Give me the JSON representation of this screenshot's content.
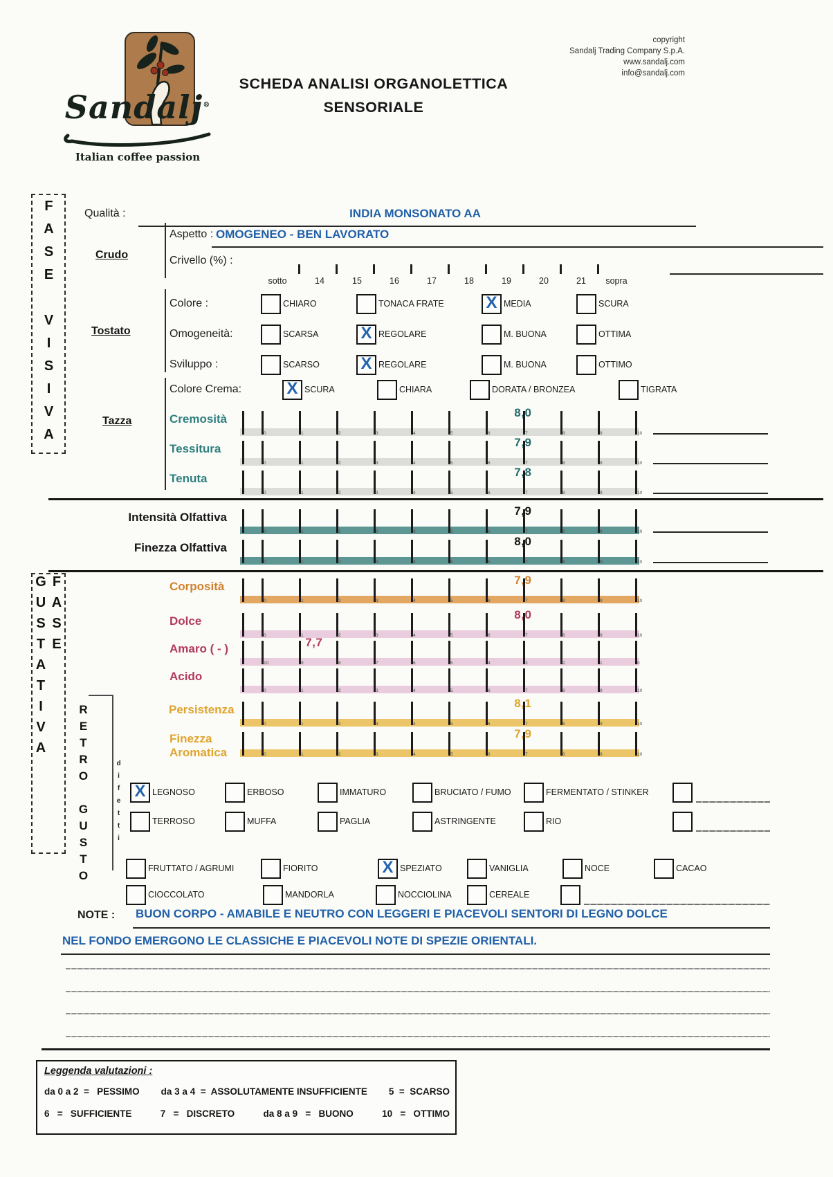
{
  "colors": {
    "ink_blue": "#2060a8",
    "check_blue": "#2263ad",
    "teal_bar": "#4f8d8a",
    "gray_bar": "#d9d9d5",
    "orange_bar": "#dfa055",
    "pink_bar": "#e7c8da",
    "gold_bar": "#ecc05c",
    "logo_brown": "#ae7c4c"
  },
  "brand": {
    "name": "Sandalj",
    "reg": "®",
    "tagline": "Italian coffee passion"
  },
  "title": {
    "line1": "SCHEDA ANALISI ORGANOLETTICA",
    "line2": "SENSORIALE"
  },
  "copyright": {
    "l1": "copyright",
    "l2": "Sandalj Trading Company S.p.A.",
    "l3": "www.sandalj.com",
    "l4": "info@sandalj.com"
  },
  "quality": {
    "label": "Qualità :",
    "value": "INDIA MONSONATO AA"
  },
  "phases": {
    "visiva": "FASE VISIVA",
    "gustativa": "FASE GUSTATIVA",
    "retro": "RETRO GUSTO",
    "difetti": "difetti"
  },
  "sections": {
    "crudo": "Crudo",
    "tostato": "Tostato",
    "tazza": "Tazza"
  },
  "crudo": {
    "aspetto_label": "Aspetto :",
    "aspetto_value": "OMOGENEO - BEN LAVORATO",
    "crivello_label": "Crivello (%) :",
    "crivello_ticks": [
      "sotto",
      "14",
      "15",
      "16",
      "17",
      "18",
      "19",
      "20",
      "21",
      "sopra"
    ]
  },
  "tostato_rows": [
    {
      "label": "Colore :",
      "options": [
        {
          "text": "CHIARO",
          "mark": ""
        },
        {
          "text": "TONACA FRATE",
          "mark": ""
        },
        {
          "text": "MEDIA",
          "mark": "X"
        },
        {
          "text": "SCURA",
          "mark": ""
        }
      ]
    },
    {
      "label": "Omogeneità:",
      "options": [
        {
          "text": "SCARSA",
          "mark": ""
        },
        {
          "text": "REGOLARE",
          "mark": "X"
        },
        {
          "text": "M. BUONA",
          "mark": ""
        },
        {
          "text": "OTTIMA",
          "mark": ""
        }
      ]
    },
    {
      "label": "Sviluppo :",
      "options": [
        {
          "text": "SCARSO",
          "mark": ""
        },
        {
          "text": "REGOLARE",
          "mark": "X"
        },
        {
          "text": "M. BUONA",
          "mark": ""
        },
        {
          "text": "OTTIMO",
          "mark": ""
        }
      ]
    }
  ],
  "colore_crema": {
    "label": "Colore Crema:",
    "options": [
      {
        "text": "SCURA",
        "mark": "X"
      },
      {
        "text": "CHIARA",
        "mark": ""
      },
      {
        "text": "DORATA / BRONZEA",
        "mark": ""
      },
      {
        "text": "TIGRATA",
        "mark": ""
      }
    ]
  },
  "scales": [
    {
      "label": "Cremosità",
      "value": "8,0",
      "label_color": "#2e7f7f",
      "value_color": "#236b6b",
      "bar_color": "#d9d9d5",
      "reverse": false
    },
    {
      "label": "Tessitura",
      "value": "7,9",
      "label_color": "#2e7f7f",
      "value_color": "#236b6b",
      "bar_color": "#d9d9d5",
      "reverse": false
    },
    {
      "label": "Tenuta",
      "value": "7,8",
      "label_color": "#2e7f7f",
      "value_color": "#236b6b",
      "bar_color": "#d9d9d5",
      "reverse": false
    },
    {
      "label": "Intensità Olfattiva",
      "value": "7,9",
      "label_color": "#161616",
      "value_color": "#161616",
      "bar_color": "#4f8d8a",
      "reverse": false
    },
    {
      "label": "Finezza Olfattiva",
      "value": "8,0",
      "label_color": "#161616",
      "value_color": "#161616",
      "bar_color": "#4f8d8a",
      "reverse": false
    },
    {
      "label": "Corposità",
      "value": "7,9",
      "label_color": "#d0822c",
      "value_color": "#d0822c",
      "bar_color": "#dfa055",
      "reverse": false
    },
    {
      "label": "Dolce",
      "value": "8,0",
      "label_color": "#b23a60",
      "value_color": "#b23a60",
      "bar_color": "#e7c8da",
      "reverse": false
    },
    {
      "label": "Amaro ( - )",
      "value": "7,7",
      "label_color": "#b23a60",
      "value_color": "#b23a60",
      "bar_color": "#e7c8da",
      "reverse": true
    },
    {
      "label": "Acido",
      "value": "",
      "label_color": "#b23a60",
      "value_color": "#b23a60",
      "bar_color": "#e7c8da",
      "reverse": false
    },
    {
      "label": "Persistenza",
      "value": "8,1",
      "label_color": "#dfa42e",
      "value_color": "#dfa42e",
      "bar_color": "#ecc05c",
      "reverse": false
    },
    {
      "label": "Finezza",
      "label2": "Aromatica",
      "value": "7,9",
      "label_color": "#dfa42e",
      "value_color": "#dfa42e",
      "bar_color": "#ecc05c",
      "reverse": false
    }
  ],
  "difetti_rows": [
    [
      {
        "text": "LEGNOSO",
        "mark": "X"
      },
      {
        "text": "ERBOSO",
        "mark": ""
      },
      {
        "text": "IMMATURO",
        "mark": ""
      },
      {
        "text": "BRUCIATO / FUMO",
        "mark": ""
      },
      {
        "text": "FERMENTATO / STINKER",
        "mark": ""
      },
      {
        "text": "",
        "mark": ""
      }
    ],
    [
      {
        "text": "TERROSO",
        "mark": ""
      },
      {
        "text": "MUFFA",
        "mark": ""
      },
      {
        "text": "PAGLIA",
        "mark": ""
      },
      {
        "text": "ASTRINGENTE",
        "mark": ""
      },
      {
        "text": "RIO",
        "mark": ""
      },
      {
        "text": "",
        "mark": ""
      }
    ]
  ],
  "gusto_rows": [
    [
      {
        "text": "FRUTTATO / AGRUMI",
        "mark": ""
      },
      {
        "text": "FIORITO",
        "mark": ""
      },
      {
        "text": "SPEZIATO",
        "mark": "X"
      },
      {
        "text": "VANIGLIA",
        "mark": ""
      },
      {
        "text": "NOCE",
        "mark": ""
      },
      {
        "text": "CACAO",
        "mark": ""
      }
    ],
    [
      {
        "text": "CIOCCOLATO",
        "mark": ""
      },
      {
        "text": "MANDORLA",
        "mark": ""
      },
      {
        "text": "NOCCIOLINA",
        "mark": ""
      },
      {
        "text": "CEREALE",
        "mark": ""
      },
      {
        "text": "",
        "mark": ""
      }
    ]
  ],
  "note": {
    "label": "NOTE :",
    "line1": "BUON CORPO - AMABILE E NEUTRO CON LEGGERI E PIACEVOLI SENTORI DI LEGNO DOLCE",
    "line2": "NEL FONDO EMERGONO LE CLASSICHE E PIACEVOLI NOTE DI SPEZIE ORIENTALI."
  },
  "legend": {
    "title": "Leggenda valutazioni :",
    "row1": [
      "da 0 a 2  =   PESSIMO",
      "da 3 a 4  =  ASSOLUTAMENTE INSUFFICIENTE",
      "5  =  SCARSO"
    ],
    "row2": [
      "6   =   SUFFICIENTE",
      "7   =   DISCRETO",
      "da 8 a 9   =   BUONO",
      "10   =   OTTIMO"
    ]
  }
}
